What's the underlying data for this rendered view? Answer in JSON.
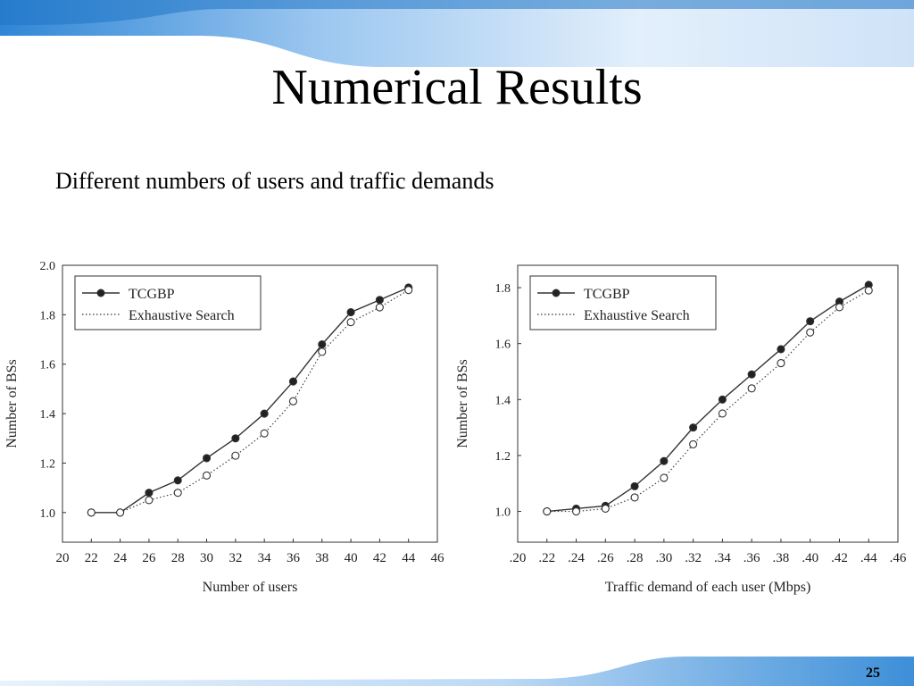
{
  "slide": {
    "title": "Numerical Results",
    "subtitle": "Different numbers of users and traffic demands",
    "page_number": "25"
  },
  "colors": {
    "banner": "#3d8fd8",
    "banner_light": "#cfe3f8"
  },
  "chart_data": [
    {
      "type": "line",
      "xlabel": "Number of users",
      "ylabel": "Number of BSs",
      "x_ticks": [
        "20",
        "22",
        "24",
        "26",
        "28",
        "30",
        "32",
        "34",
        "36",
        "38",
        "40",
        "42",
        "44",
        "46"
      ],
      "y_ticks": [
        "1.0",
        "1.2",
        "1.4",
        "1.6",
        "1.8",
        "2.0"
      ],
      "xlim": [
        20,
        46
      ],
      "ylim": [
        0.88,
        2.0
      ],
      "grid": false,
      "legend_position": "top-left",
      "x": [
        22,
        24,
        26,
        28,
        30,
        32,
        34,
        36,
        38,
        40,
        42,
        44
      ],
      "series": [
        {
          "name": "TCGBP",
          "style": "solid-filled",
          "values": [
            1.0,
            1.0,
            1.08,
            1.13,
            1.22,
            1.3,
            1.4,
            1.53,
            1.68,
            1.81,
            1.86,
            1.91
          ]
        },
        {
          "name": "Exhaustive Search",
          "style": "dotted-open",
          "values": [
            1.0,
            1.0,
            1.05,
            1.08,
            1.15,
            1.23,
            1.32,
            1.45,
            1.65,
            1.77,
            1.83,
            1.9
          ]
        }
      ]
    },
    {
      "type": "line",
      "xlabel": "Traffic demand of each user (Mbps)",
      "ylabel": "Number of BSs",
      "x_ticks": [
        ".20",
        ".22",
        ".24",
        ".26",
        ".28",
        ".30",
        ".32",
        ".34",
        ".36",
        ".38",
        ".40",
        ".42",
        ".44",
        ".46"
      ],
      "y_ticks": [
        "1.0",
        "1.2",
        "1.4",
        "1.6",
        "1.8"
      ],
      "xlim": [
        0.2,
        0.46
      ],
      "ylim": [
        0.89,
        1.88
      ],
      "grid": false,
      "legend_position": "top-left",
      "x": [
        0.22,
        0.24,
        0.26,
        0.28,
        0.3,
        0.32,
        0.34,
        0.36,
        0.38,
        0.4,
        0.42,
        0.44
      ],
      "series": [
        {
          "name": "TCGBP",
          "style": "solid-filled",
          "values": [
            1.0,
            1.01,
            1.02,
            1.09,
            1.18,
            1.3,
            1.4,
            1.49,
            1.58,
            1.68,
            1.75,
            1.81
          ]
        },
        {
          "name": "Exhaustive Search",
          "style": "dotted-open",
          "values": [
            1.0,
            1.0,
            1.01,
            1.05,
            1.12,
            1.24,
            1.35,
            1.44,
            1.53,
            1.64,
            1.73,
            1.79
          ]
        }
      ]
    }
  ]
}
